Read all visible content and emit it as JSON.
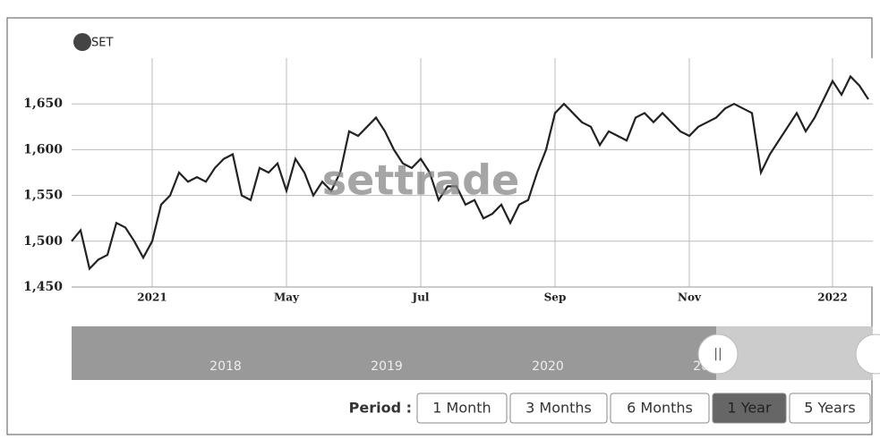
{
  "chart_data": {
    "type": "line",
    "categories": [
      null,
      null,
      null,
      null,
      null,
      null,
      null,
      null,
      null,
      "2021",
      null,
      null,
      null,
      null,
      null,
      null,
      null,
      null,
      null,
      null,
      null,
      null,
      null,
      null,
      "May",
      null,
      null,
      null,
      null,
      null,
      null,
      null,
      null,
      null,
      null,
      null,
      null,
      null,
      null,
      "Jul",
      null,
      null,
      null,
      null,
      null,
      null,
      null,
      null,
      null,
      null,
      null,
      null,
      null,
      null,
      "Sep",
      null,
      null,
      null,
      null,
      null,
      null,
      null,
      null,
      null,
      null,
      null,
      null,
      null,
      null,
      "Nov",
      null,
      null,
      null,
      null,
      null,
      null,
      null,
      null,
      null,
      null,
      null,
      null,
      null,
      null,
      null,
      "2022",
      null,
      null,
      null,
      null
    ],
    "series": [
      {
        "name": "SET",
        "color": "#222222",
        "values": [
          1500,
          1512,
          1470,
          1480,
          1485,
          1520,
          1515,
          1500,
          1482,
          1500,
          1540,
          1550,
          1575,
          1565,
          1570,
          1565,
          1580,
          1590,
          1595,
          1550,
          1545,
          1580,
          1575,
          1585,
          1555,
          1590,
          1575,
          1550,
          1565,
          1555,
          1575,
          1620,
          1615,
          1625,
          1635,
          1620,
          1600,
          1585,
          1580,
          1590,
          1575,
          1545,
          1560,
          1560,
          1540,
          1545,
          1525,
          1530,
          1540,
          1520,
          1540,
          1545,
          1575,
          1600,
          1640,
          1650,
          1640,
          1630,
          1625,
          1605,
          1620,
          1615,
          1610,
          1635,
          1640,
          1630,
          1640,
          1630,
          1620,
          1615,
          1625,
          1630,
          1635,
          1645,
          1650,
          1645,
          1640,
          1575,
          1595,
          1610,
          1625,
          1640,
          1620,
          1635,
          1655,
          1675,
          1660,
          1680,
          1670,
          1655
        ]
      }
    ],
    "ylim": [
      1450,
      1700
    ],
    "yticks": [
      {
        "value": 1450,
        "label": "1,450"
      },
      {
        "value": 1500,
        "label": "1,500"
      },
      {
        "value": 1550,
        "label": "1,550"
      },
      {
        "value": 1600,
        "label": "1,600"
      },
      {
        "value": 1650,
        "label": "1,650"
      }
    ],
    "grid": true,
    "legend": "top-left"
  },
  "watermark": "settrade",
  "navigator": {
    "labels": [
      "2018",
      "2019",
      "2020",
      "2021"
    ]
  },
  "period_selector": {
    "label": "Period :",
    "buttons": [
      "1 Month",
      "3 Months",
      "6 Months",
      "1 Year",
      "5 Years"
    ],
    "selected": 3
  }
}
